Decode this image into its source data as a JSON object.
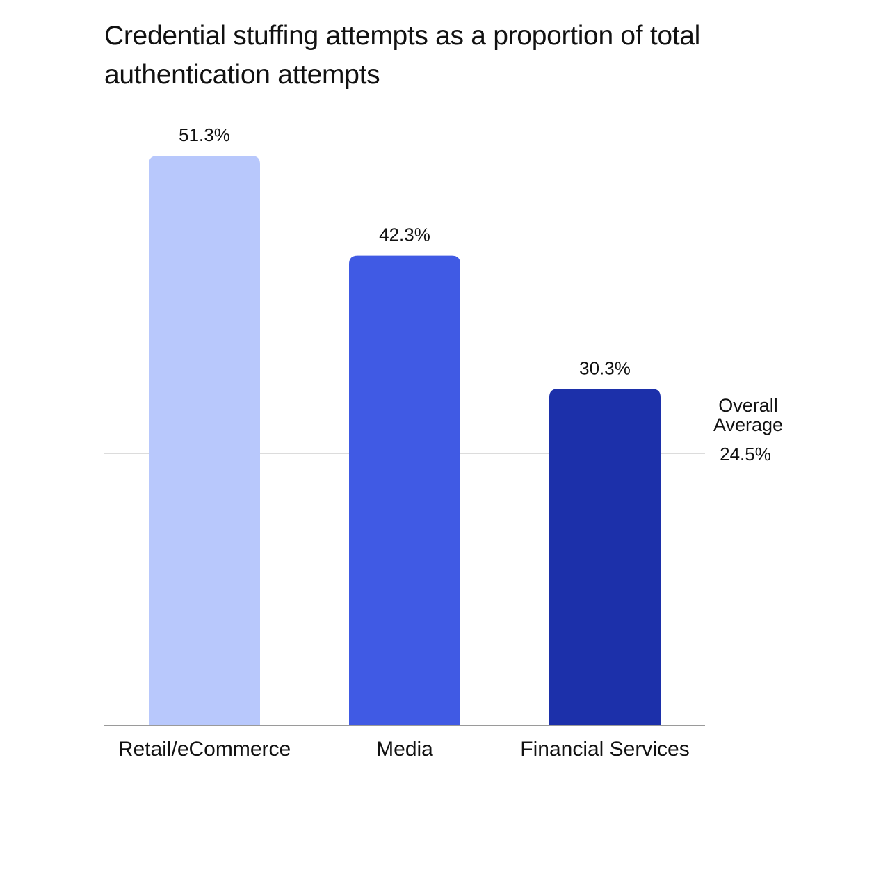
{
  "chart_data": {
    "type": "bar",
    "title": "Credential stuffing attempts as a proportion of total authentication attempts",
    "xlabel": "",
    "ylabel": "",
    "categories": [
      "Retail/eCommerce",
      "Media",
      "Financial Services"
    ],
    "values": [
      51.3,
      42.3,
      30.3
    ],
    "data_labels": [
      "51.3%",
      "42.3%",
      "30.3%"
    ],
    "colors": [
      "#b8c8fc",
      "#405ae4",
      "#1c30aa"
    ],
    "ylim": [
      0,
      51.3
    ],
    "grid": false,
    "reference_line": {
      "value": 24.5,
      "label_lines": [
        "Overall",
        "Average"
      ],
      "value_label": "24.5%",
      "color": "#c8c8c8"
    },
    "axis_color": "#9a9a9a"
  }
}
